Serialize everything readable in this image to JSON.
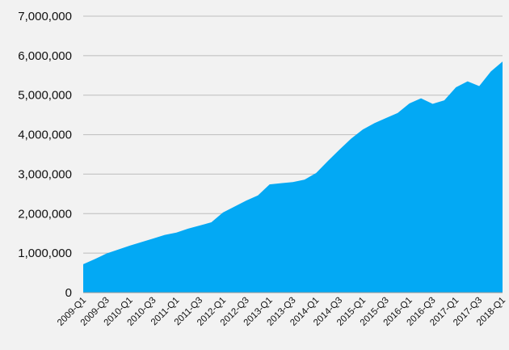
{
  "chart_data": {
    "type": "area",
    "color": "#03a9f4",
    "grid": true,
    "categories": [
      "2009-Q1",
      null,
      "2009-Q3",
      null,
      "2010-Q1",
      null,
      "2010-Q3",
      null,
      "2011-Q1",
      null,
      "2011-Q3",
      null,
      "2012-Q1",
      null,
      "2012-Q3",
      null,
      "2013-Q1",
      null,
      "2013-Q3",
      null,
      "2014-Q1",
      null,
      "2014-Q3",
      null,
      "2015-Q1",
      null,
      "2015-Q3",
      null,
      "2016-Q1",
      null,
      "2016-Q3",
      null,
      "2017-Q1",
      null,
      "2017-Q3",
      null,
      "2018-Q1"
    ],
    "values": [
      720000,
      850000,
      990000,
      1090000,
      1190000,
      1280000,
      1370000,
      1460000,
      1520000,
      1620000,
      1700000,
      1780000,
      2030000,
      2180000,
      2330000,
      2460000,
      2740000,
      2770000,
      2800000,
      2860000,
      3030000,
      3330000,
      3620000,
      3900000,
      4130000,
      4290000,
      4420000,
      4550000,
      4790000,
      4920000,
      4780000,
      4870000,
      5200000,
      5350000,
      5230000,
      5600000,
      5850000
    ],
    "ylim": [
      0,
      7000000
    ],
    "yticks": [
      0,
      {
        "value": 1000000,
        "label": "1,000,000"
      },
      {
        "value": 2000000,
        "label": "2,000,000"
      },
      {
        "value": 3000000,
        "label": "3,000,000"
      },
      {
        "value": 4000000,
        "label": "4,000,000"
      },
      {
        "value": 5000000,
        "label": "5,000,000"
      },
      {
        "value": 6000000,
        "label": "6,000,000"
      },
      {
        "value": 7000000,
        "label": "7,000,000"
      }
    ]
  }
}
